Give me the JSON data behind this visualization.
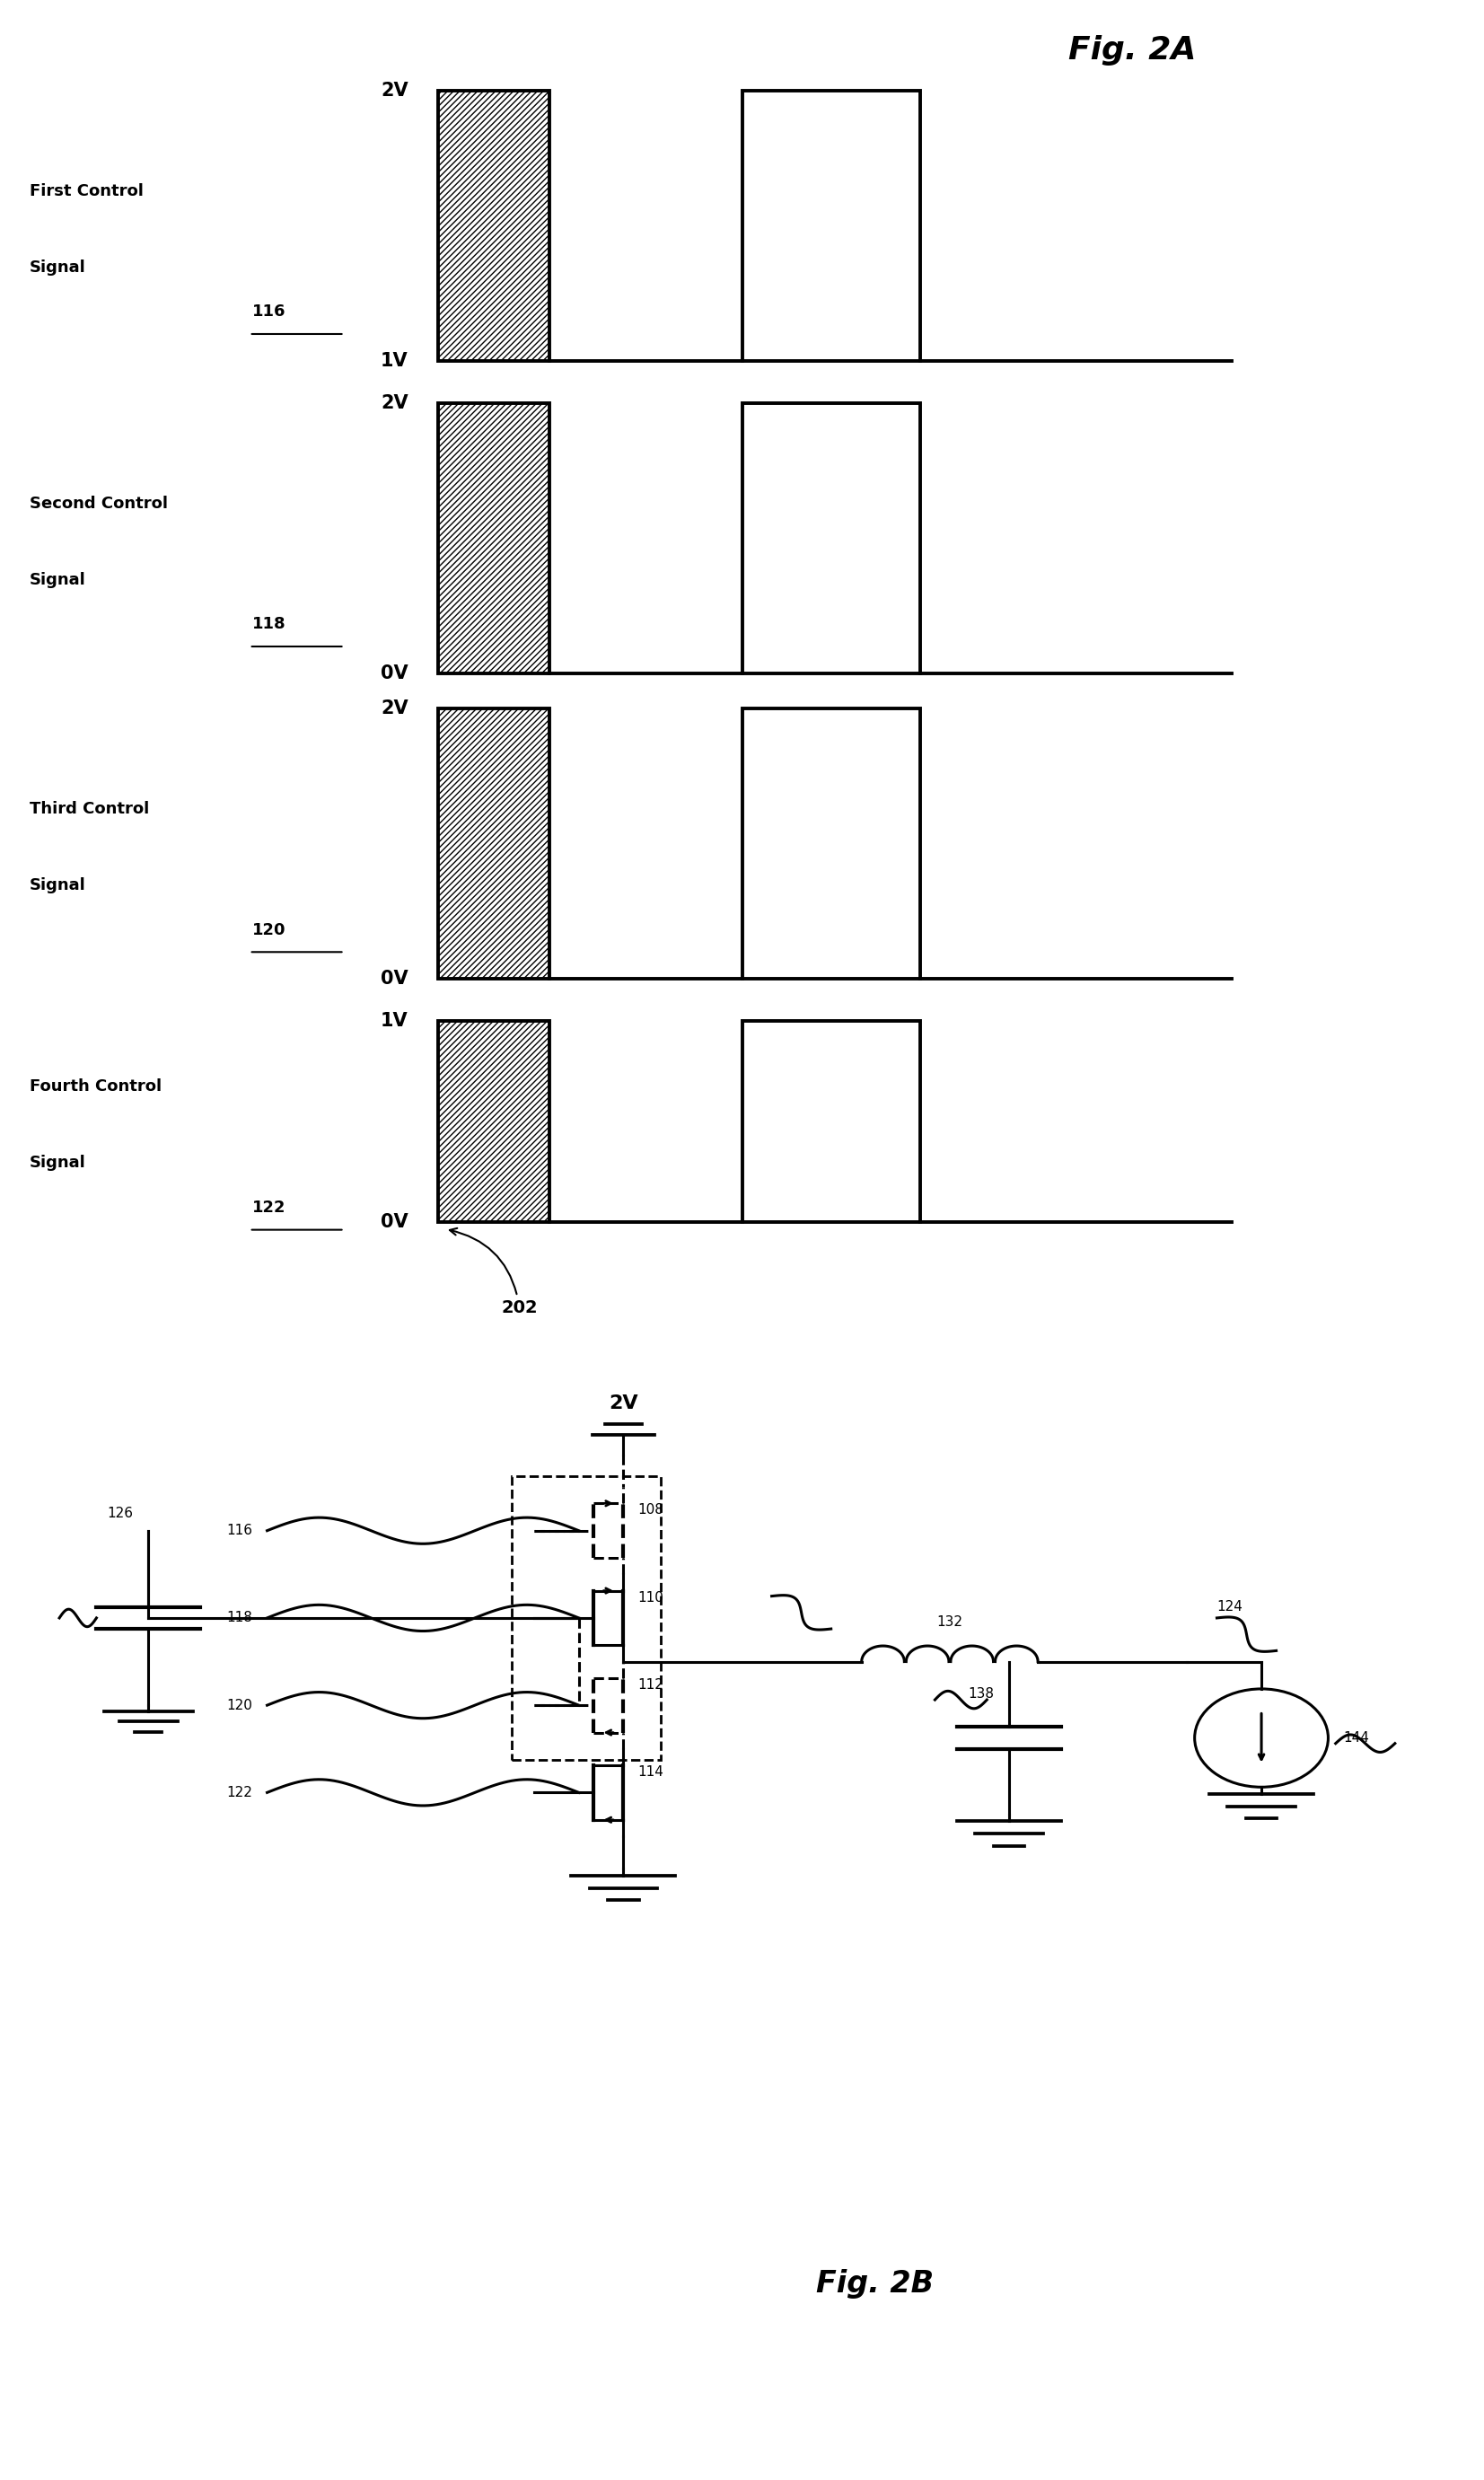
{
  "fig_title_2A": "Fig. 2A",
  "fig_title_2B": "Fig. 2B",
  "signals": [
    {
      "name_line1": "First Control",
      "name_line2": "Signal",
      "ref": "116",
      "high_val": "2V",
      "low_val": "1V"
    },
    {
      "name_line1": "Second Control",
      "name_line2": "Signal",
      "ref": "118",
      "high_val": "2V",
      "low_val": "0V"
    },
    {
      "name_line1": "Third Control",
      "name_line2": "Signal",
      "ref": "120",
      "high_val": "2V",
      "low_val": "0V"
    },
    {
      "name_line1": "Fourth Control",
      "name_line2": "Signal",
      "ref": "122",
      "high_val": "1V",
      "low_val": "0V"
    }
  ],
  "background_color": "#ffffff",
  "lw_signal": 2.8,
  "lw_circuit": 2.2
}
